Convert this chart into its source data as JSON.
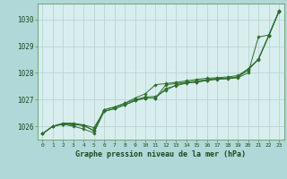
{
  "bg_color": "#b0d8d8",
  "plot_bg_color": "#d8eeee",
  "grid_color": "#b8d4d4",
  "line_color": "#2d6e2d",
  "xlabel": "Graphe pression niveau de la mer (hPa)",
  "ylim": [
    1025.5,
    1030.6
  ],
  "xlim": [
    -0.5,
    23.5
  ],
  "yticks": [
    1026,
    1027,
    1028,
    1029,
    1030
  ],
  "xticks": [
    0,
    1,
    2,
    3,
    4,
    5,
    6,
    7,
    8,
    9,
    10,
    11,
    12,
    13,
    14,
    15,
    16,
    17,
    18,
    19,
    20,
    21,
    22,
    23
  ],
  "series": [
    [
      1025.72,
      1026.0,
      1026.08,
      1026.08,
      1026.02,
      1025.85,
      1026.62,
      1026.72,
      1026.86,
      1027.0,
      1027.1,
      1027.12,
      1027.35,
      1027.55,
      1027.65,
      1027.7,
      1027.75,
      1027.8,
      1027.8,
      1027.85,
      1028.1,
      1028.52,
      1029.38,
      1030.32
    ],
    [
      1025.72,
      1026.0,
      1026.08,
      1026.05,
      1026.05,
      1025.95,
      1026.56,
      1026.66,
      1026.8,
      1026.96,
      1027.06,
      1027.06,
      1027.42,
      1027.52,
      1027.62,
      1027.66,
      1027.72,
      1027.76,
      1027.78,
      1027.82,
      1028.0,
      1029.35,
      1029.42,
      1030.32
    ],
    [
      1025.72,
      1026.0,
      1026.08,
      1026.0,
      1025.9,
      1025.75,
      1026.56,
      1026.66,
      1026.8,
      1026.96,
      1027.06,
      1027.06,
      1027.56,
      1027.6,
      1027.65,
      1027.65,
      1027.72,
      1027.78,
      1027.8,
      1027.85,
      1028.15,
      1028.5,
      1029.4,
      1030.3
    ],
    [
      1025.72,
      1026.0,
      1026.12,
      1026.12,
      1026.05,
      1025.82,
      1026.62,
      1026.72,
      1026.86,
      1027.06,
      1027.22,
      1027.56,
      1027.6,
      1027.65,
      1027.7,
      1027.76,
      1027.8,
      1027.82,
      1027.85,
      1027.9,
      1028.15,
      1028.52,
      1029.4,
      1030.3
    ]
  ]
}
